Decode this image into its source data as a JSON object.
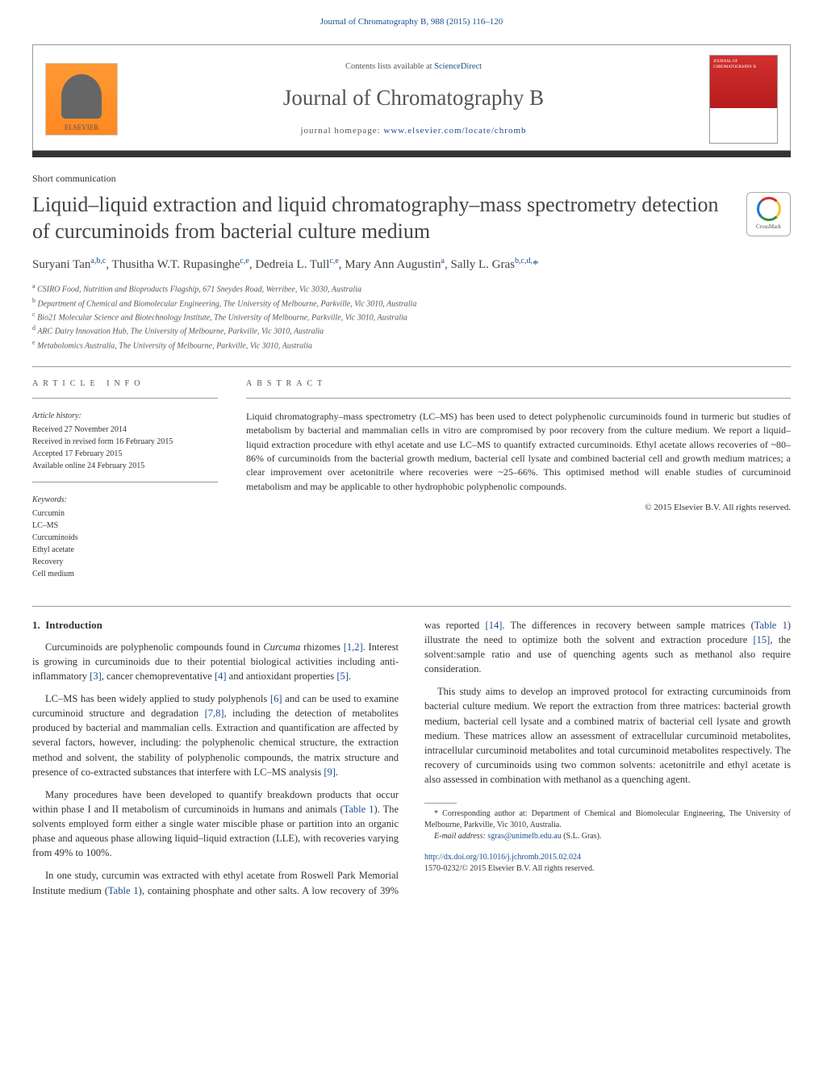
{
  "header": {
    "citation": "Journal of Chromatography B, 988 (2015) 116–120",
    "citation_color": "#1a4d8f"
  },
  "masthead": {
    "publisher_name": "ELSEVIER",
    "contents_prefix": "Contents lists available at ",
    "contents_link_text": "ScienceDirect",
    "journal_name": "Journal of Chromatography B",
    "homepage_prefix": "journal homepage: ",
    "homepage_url": "www.elsevier.com/locate/chromb",
    "cover_title": "JOURNAL OF CHROMATOGRAPHY B"
  },
  "colors": {
    "link": "#1a4d8f",
    "text_main": "#333333",
    "text_muted": "#555555",
    "rule": "#999999",
    "dark_bar": "#333333",
    "elsevier_gradient_top": "#ff9933",
    "elsevier_gradient_bottom": "#ff8822",
    "cover_red": "#d32f2f"
  },
  "article": {
    "type": "Short communication",
    "title": "Liquid–liquid extraction and liquid chromatography–mass spectrometry detection of curcuminoids from bacterial culture medium",
    "title_fontsize": 26,
    "crossmark_label": "CrossMark",
    "authors_html": "Suryani Tan<sup>a,b,c</sup>, Thusitha W.T. Rupasinghe<sup>c,e</sup>, Dedreia L. Tull<sup>c,e</sup>, Mary Ann Augustin<sup>a</sup>, Sally L. Gras<sup>b,c,d,</sup><span class='corr'>*</span>",
    "affiliations": [
      {
        "key": "a",
        "text": "CSIRO Food, Nutrition and Bioproducts Flagship, 671 Sneydes Road, Werribee, Vic 3030, Australia"
      },
      {
        "key": "b",
        "text": "Department of Chemical and Biomolecular Engineering, The University of Melbourne, Parkville, Vic 3010, Australia"
      },
      {
        "key": "c",
        "text": "Bio21 Molecular Science and Biotechnology Institute, The University of Melbourne, Parkville, Vic 3010, Australia"
      },
      {
        "key": "d",
        "text": "ARC Dairy Innovation Hub, The University of Melbourne, Parkville, Vic 3010, Australia"
      },
      {
        "key": "e",
        "text": "Metabolomics Australia, The University of Melbourne, Parkville, Vic 3010, Australia"
      }
    ]
  },
  "info": {
    "heading": "article info",
    "history_label": "Article history:",
    "history": [
      "Received 27 November 2014",
      "Received in revised form 16 February 2015",
      "Accepted 17 February 2015",
      "Available online 24 February 2015"
    ],
    "keywords_label": "Keywords:",
    "keywords": [
      "Curcumin",
      "LC–MS",
      "Curcuminoids",
      "Ethyl acetate",
      "Recovery",
      "Cell medium"
    ]
  },
  "abstract": {
    "heading": "abstract",
    "text": "Liquid chromatography–mass spectrometry (LC–MS) has been used to detect polyphenolic curcuminoids found in turmeric but studies of metabolism by bacterial and mammalian cells in vitro are compromised by poor recovery from the culture medium. We report a liquid–liquid extraction procedure with ethyl acetate and use LC–MS to quantify extracted curcuminoids. Ethyl acetate allows recoveries of ~80–86% of curcuminoids from the bacterial growth medium, bacterial cell lysate and combined bacterial cell and growth medium matrices; a clear improvement over acetonitrile where recoveries were ~25–66%. This optimised method will enable studies of curcuminoid metabolism and may be applicable to other hydrophobic polyphenolic compounds.",
    "copyright": "© 2015 Elsevier B.V. All rights reserved."
  },
  "body": {
    "section_number": "1.",
    "section_title": "Introduction",
    "paragraphs": [
      "Curcuminoids are polyphenolic compounds found in Curcuma rhizomes [1,2]. Interest is growing in curcuminoids due to their potential biological activities including anti-inflammatory [3], cancer chemopreventative [4] and antioxidant properties [5].",
      "LC–MS has been widely applied to study polyphenols [6] and can be used to examine curcuminoid structure and degradation [7,8], including the detection of metabolites produced by bacterial and mammalian cells. Extraction and quantification are affected by several factors, however, including: the polyphenolic chemical structure, the extraction method and solvent, the stability of polyphenolic compounds, the matrix structure and presence of co-extracted substances that interfere with LC–MS analysis [9].",
      "Many procedures have been developed to quantify breakdown products that occur within phase I and II metabolism of curcuminoids in humans and animals (Table 1). The solvents employed form either a single water miscible phase or partition into an organic phase and aqueous phase allowing liquid–liquid extraction (LLE), with recoveries varying from 49% to 100%.",
      "In one study, curcumin was extracted with ethyl acetate from Roswell Park Memorial Institute medium (Table 1), containing phosphate and other salts. A low recovery of 39% was reported [14]. The differences in recovery between sample matrices (Table 1) illustrate the need to optimize both the solvent and extraction procedure [15], the solvent:sample ratio and use of quenching agents such as methanol also require consideration.",
      "This study aims to develop an improved protocol for extracting curcuminoids from bacterial culture medium. We report the extraction from three matrices: bacterial growth medium, bacterial cell lysate and a combined matrix of bacterial cell lysate and growth medium. These matrices allow an assessment of extracellular curcuminoid metabolites, intracellular curcuminoid metabolites and total curcuminoid metabolites respectively. The recovery of curcuminoids using two common solvents: acetonitrile and ethyl acetate is also assessed in combination with methanol as a quenching agent."
    ],
    "ref_links": [
      "[1,2]",
      "[3]",
      "[4]",
      "[5]",
      "[6]",
      "[7,8]",
      "[9]",
      "[14]",
      "[15]"
    ],
    "table_links": [
      "Table 1"
    ]
  },
  "footnotes": {
    "corr_marker": "*",
    "corr_text": "Corresponding author at: Department of Chemical and Biomolecular Engineering, The University of Melbourne, Parkville, Vic 3010, Australia.",
    "email_label": "E-mail address: ",
    "email": "sgras@unimelb.edu.au",
    "email_suffix": " (S.L. Gras)."
  },
  "doi": {
    "url": "http://dx.doi.org/10.1016/j.jchromb.2015.02.024",
    "issn_line": "1570-0232/© 2015 Elsevier B.V. All rights reserved."
  }
}
